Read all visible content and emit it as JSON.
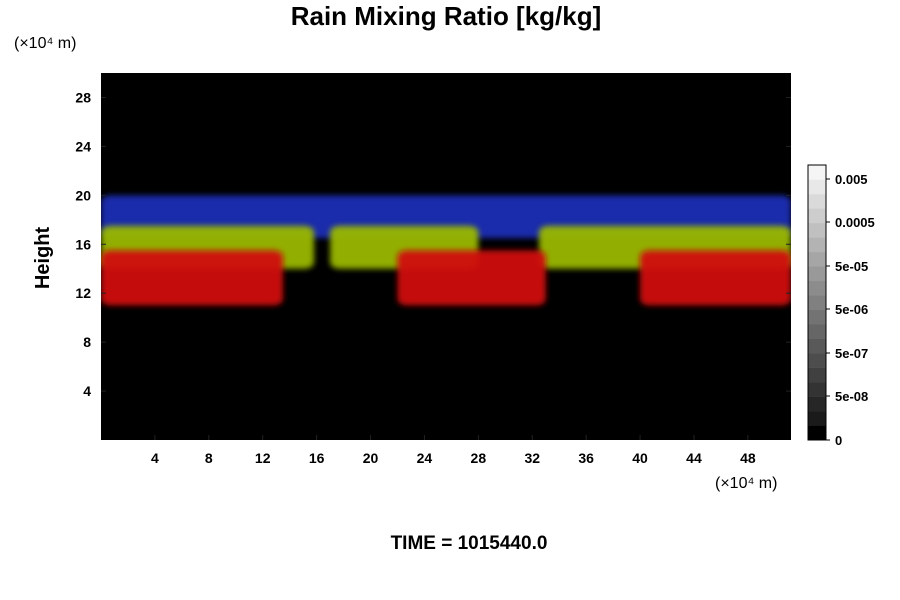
{
  "chart_data": {
    "type": "heatmap",
    "title": "Rain Mixing Ratio [kg/kg]",
    "ylabel": "Height",
    "x_unit_label": "(×10⁴ m)",
    "y_unit_label": "(×10⁴ m)",
    "x_ticks": [
      4,
      8,
      12,
      16,
      20,
      24,
      28,
      32,
      36,
      40,
      44,
      48
    ],
    "y_ticks": [
      4,
      8,
      12,
      16,
      20,
      24,
      28
    ],
    "xlim": [
      0,
      51.2
    ],
    "ylim": [
      0,
      30
    ],
    "colorbar": {
      "labels": [
        "0.005",
        "0.0005",
        "5e-05",
        "5e-06",
        "5e-07",
        "5e-08",
        "0"
      ],
      "color_levels": [
        "#000000",
        "#1a1a1a",
        "#262626",
        "#333333",
        "#404040",
        "#4d4d4d",
        "#595959",
        "#666666",
        "#737373",
        "#808080",
        "#8c8c8c",
        "#999999",
        "#a6a6a6",
        "#b3b3b3",
        "#c0c0c0",
        "#cdcdcd",
        "#dadada",
        "#e8e8e8",
        "#f5f5f5"
      ]
    },
    "layers": [
      {
        "name": "red",
        "color": "#d01010",
        "segments": [
          [
            0,
            13.5
          ],
          [
            22,
            33
          ],
          [
            40,
            51.2
          ]
        ]
      },
      {
        "name": "yellow-green",
        "color": "#9ab800",
        "segments": [
          [
            0,
            15.8
          ],
          [
            17,
            28
          ],
          [
            32.5,
            51.2
          ]
        ]
      },
      {
        "name": "blue",
        "color": "#1c2fb5",
        "segments": [
          [
            0,
            51.2
          ]
        ]
      }
    ],
    "band_heights": {
      "blue": [
        16.5,
        20
      ],
      "yellow-green": [
        14,
        17.5
      ],
      "red": [
        11,
        15.5
      ]
    },
    "background_color": "#000000"
  },
  "footer": {
    "time_label": "TIME = 1015440.0"
  }
}
